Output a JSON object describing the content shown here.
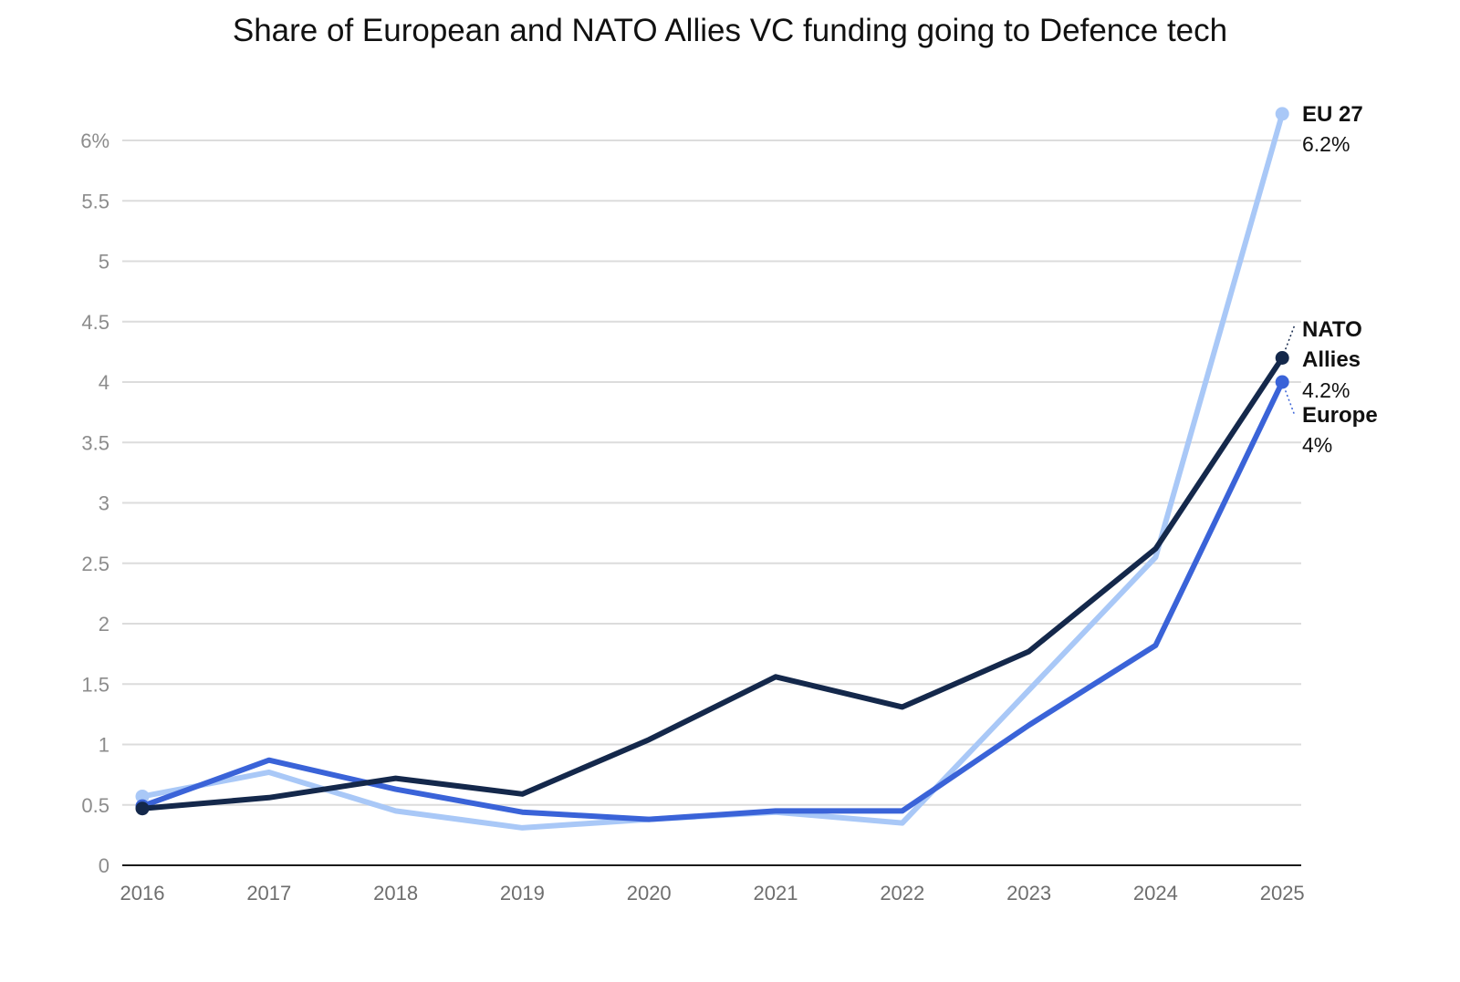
{
  "chart_data": {
    "type": "line",
    "title": "Share of European and NATO Allies VC funding going to Defence tech",
    "xlabel": "",
    "ylabel": "",
    "x": [
      "2016",
      "2017",
      "2018",
      "2019",
      "2020",
      "2021",
      "2022",
      "2023",
      "2024",
      "2025"
    ],
    "ylim": [
      0,
      6.5
    ],
    "yticks": [
      0,
      0.5,
      1,
      1.5,
      2,
      2.5,
      3,
      3.5,
      4,
      4.5,
      5,
      5.5,
      6
    ],
    "ytick_labels": [
      "0",
      "0.5",
      "1",
      "1.5",
      "2",
      "2.5",
      "3",
      "3.5",
      "4",
      "4.5",
      "5",
      "5.5",
      "6%"
    ],
    "grid": true,
    "legend": "direct labels at line ends (right)",
    "series": [
      {
        "name": "EU 27",
        "end_label_lines": [
          "EU 27"
        ],
        "end_value_label": "6.2%",
        "color": "#a9c8f7",
        "values": [
          0.57,
          0.77,
          0.45,
          0.31,
          0.38,
          0.44,
          0.35,
          1.45,
          2.55,
          6.22
        ]
      },
      {
        "name": "NATO Allies",
        "end_label_lines": [
          "NATO",
          "Allies"
        ],
        "end_value_label": "4.2%",
        "color": "#14284b",
        "values": [
          0.47,
          0.56,
          0.72,
          0.59,
          1.04,
          1.56,
          1.31,
          1.77,
          2.62,
          4.2
        ]
      },
      {
        "name": "Europe",
        "end_label_lines": [
          "Europe"
        ],
        "end_value_label": "4%",
        "color": "#3a63d8",
        "values": [
          0.49,
          0.87,
          0.63,
          0.44,
          0.38,
          0.45,
          0.45,
          1.16,
          1.82,
          4.0
        ]
      }
    ]
  }
}
